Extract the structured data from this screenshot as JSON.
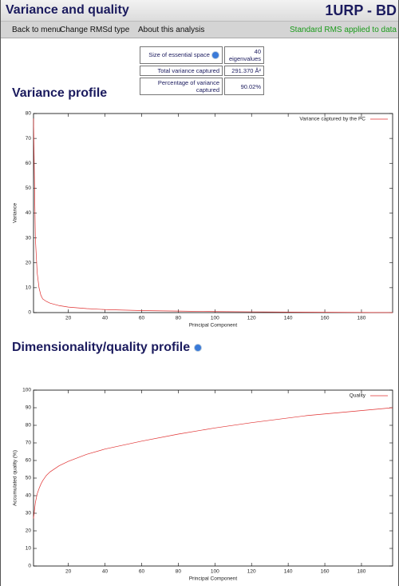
{
  "header": {
    "title": "Variance and quality",
    "id": "1URP - BD"
  },
  "nav": {
    "items": [
      "Back to menu",
      "Change RMSd type",
      "About this analysis"
    ],
    "status": "Standard RMS applied to data"
  },
  "summary": {
    "rows": [
      [
        "Size of essential space",
        "40 eigenvalues"
      ],
      [
        "Total variance captured",
        "291.370 Å²"
      ],
      [
        "Percentage of variance captured",
        "90.02%"
      ]
    ]
  },
  "sections": [
    "Variance profile",
    "Dimensionality/quality profile"
  ],
  "charts": [
    {
      "type": "line",
      "xlabel": "Principal Component",
      "ylabel": "Variance",
      "series": [
        {
          "name": "Variance captured by the PC",
          "color": "#e03030",
          "x": [
            1,
            2,
            3,
            4,
            5,
            6,
            8,
            10,
            15,
            20,
            30,
            40,
            60,
            80,
            100,
            120,
            150,
            197
          ],
          "values": [
            78,
            30,
            16,
            10,
            7,
            5.5,
            4.5,
            3.8,
            2.8,
            2.2,
            1.6,
            1.2,
            0.8,
            0.6,
            0.4,
            0.3,
            0.15,
            0
          ]
        }
      ],
      "xlim": [
        1,
        197
      ],
      "ylim": [
        0,
        80
      ],
      "xticks": [
        20,
        40,
        60,
        80,
        100,
        120,
        140,
        160,
        180
      ],
      "yticks": [
        0,
        10,
        20,
        30,
        40,
        50,
        60,
        70,
        80
      ],
      "legend": "upper right"
    },
    {
      "type": "line",
      "xlabel": "Principal Component",
      "ylabel": "Accumulated quality (%)",
      "series": [
        {
          "name": "Quality",
          "color": "#e03030",
          "x": [
            1,
            2,
            3,
            4,
            5,
            6,
            8,
            10,
            15,
            20,
            30,
            40,
            60,
            80,
            100,
            120,
            150,
            197
          ],
          "values": [
            27,
            36,
            41,
            44,
            46.5,
            48.5,
            51.5,
            53.5,
            57,
            59.5,
            63.5,
            66.5,
            71,
            75,
            78.5,
            81.5,
            85.5,
            90
          ]
        }
      ],
      "xlim": [
        1,
        197
      ],
      "ylim": [
        0,
        100
      ],
      "xticks": [
        20,
        40,
        60,
        80,
        100,
        120,
        140,
        160,
        180
      ],
      "yticks": [
        0,
        10,
        20,
        30,
        40,
        50,
        60,
        70,
        80,
        90,
        100
      ],
      "legend": "upper right"
    }
  ]
}
